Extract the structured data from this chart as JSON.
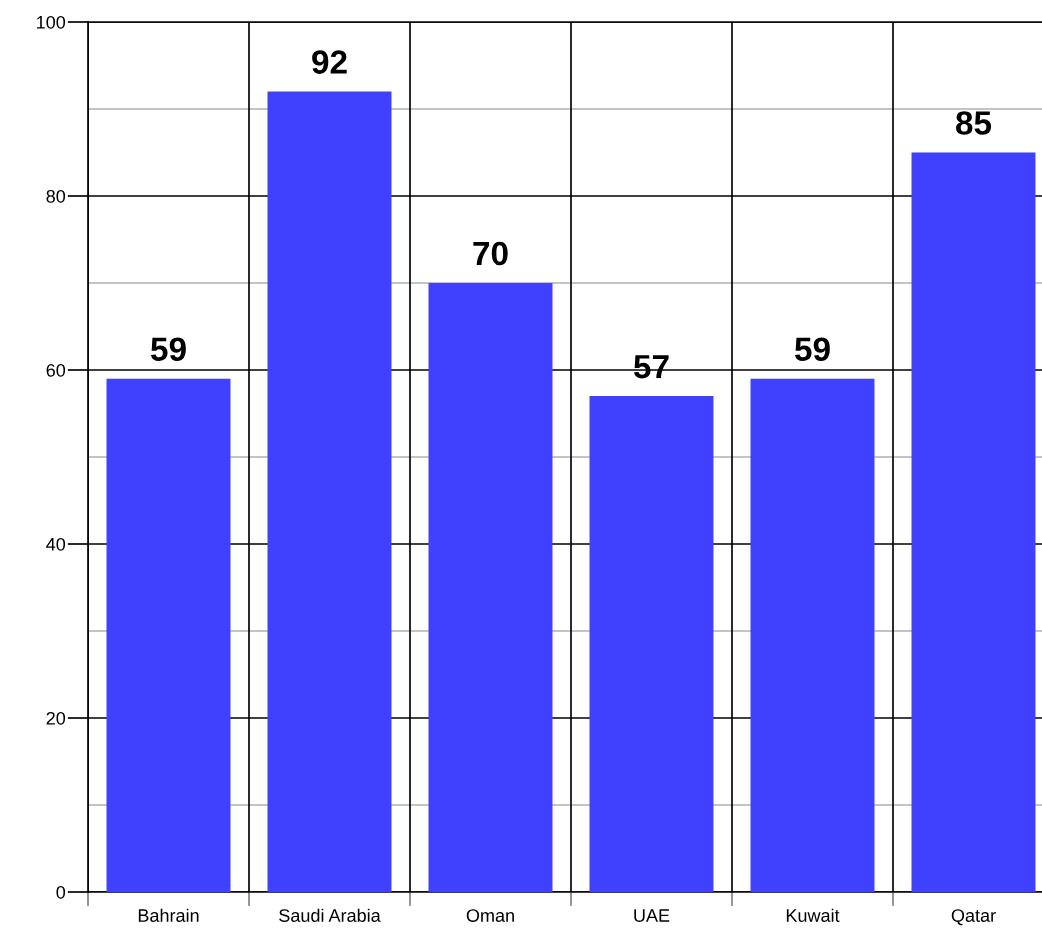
{
  "chart_data": {
    "type": "bar",
    "categories": [
      "Bahrain",
      "Saudi Arabia",
      "Oman",
      "UAE",
      "Kuwait",
      "Qatar"
    ],
    "values": [
      59,
      92,
      70,
      57,
      59,
      85
    ],
    "color": "#4040ff",
    "ylim": [
      0,
      100
    ],
    "yticks": [
      0,
      {
        "value": 10,
        "label": null
      },
      20,
      {
        "value": 30,
        "label": null
      },
      40,
      {
        "value": 50,
        "label": null
      },
      60,
      {
        "value": 70,
        "label": null
      },
      80,
      {
        "value": 90,
        "label": null
      },
      100
    ],
    "grid": true,
    "data_labels": true
  }
}
